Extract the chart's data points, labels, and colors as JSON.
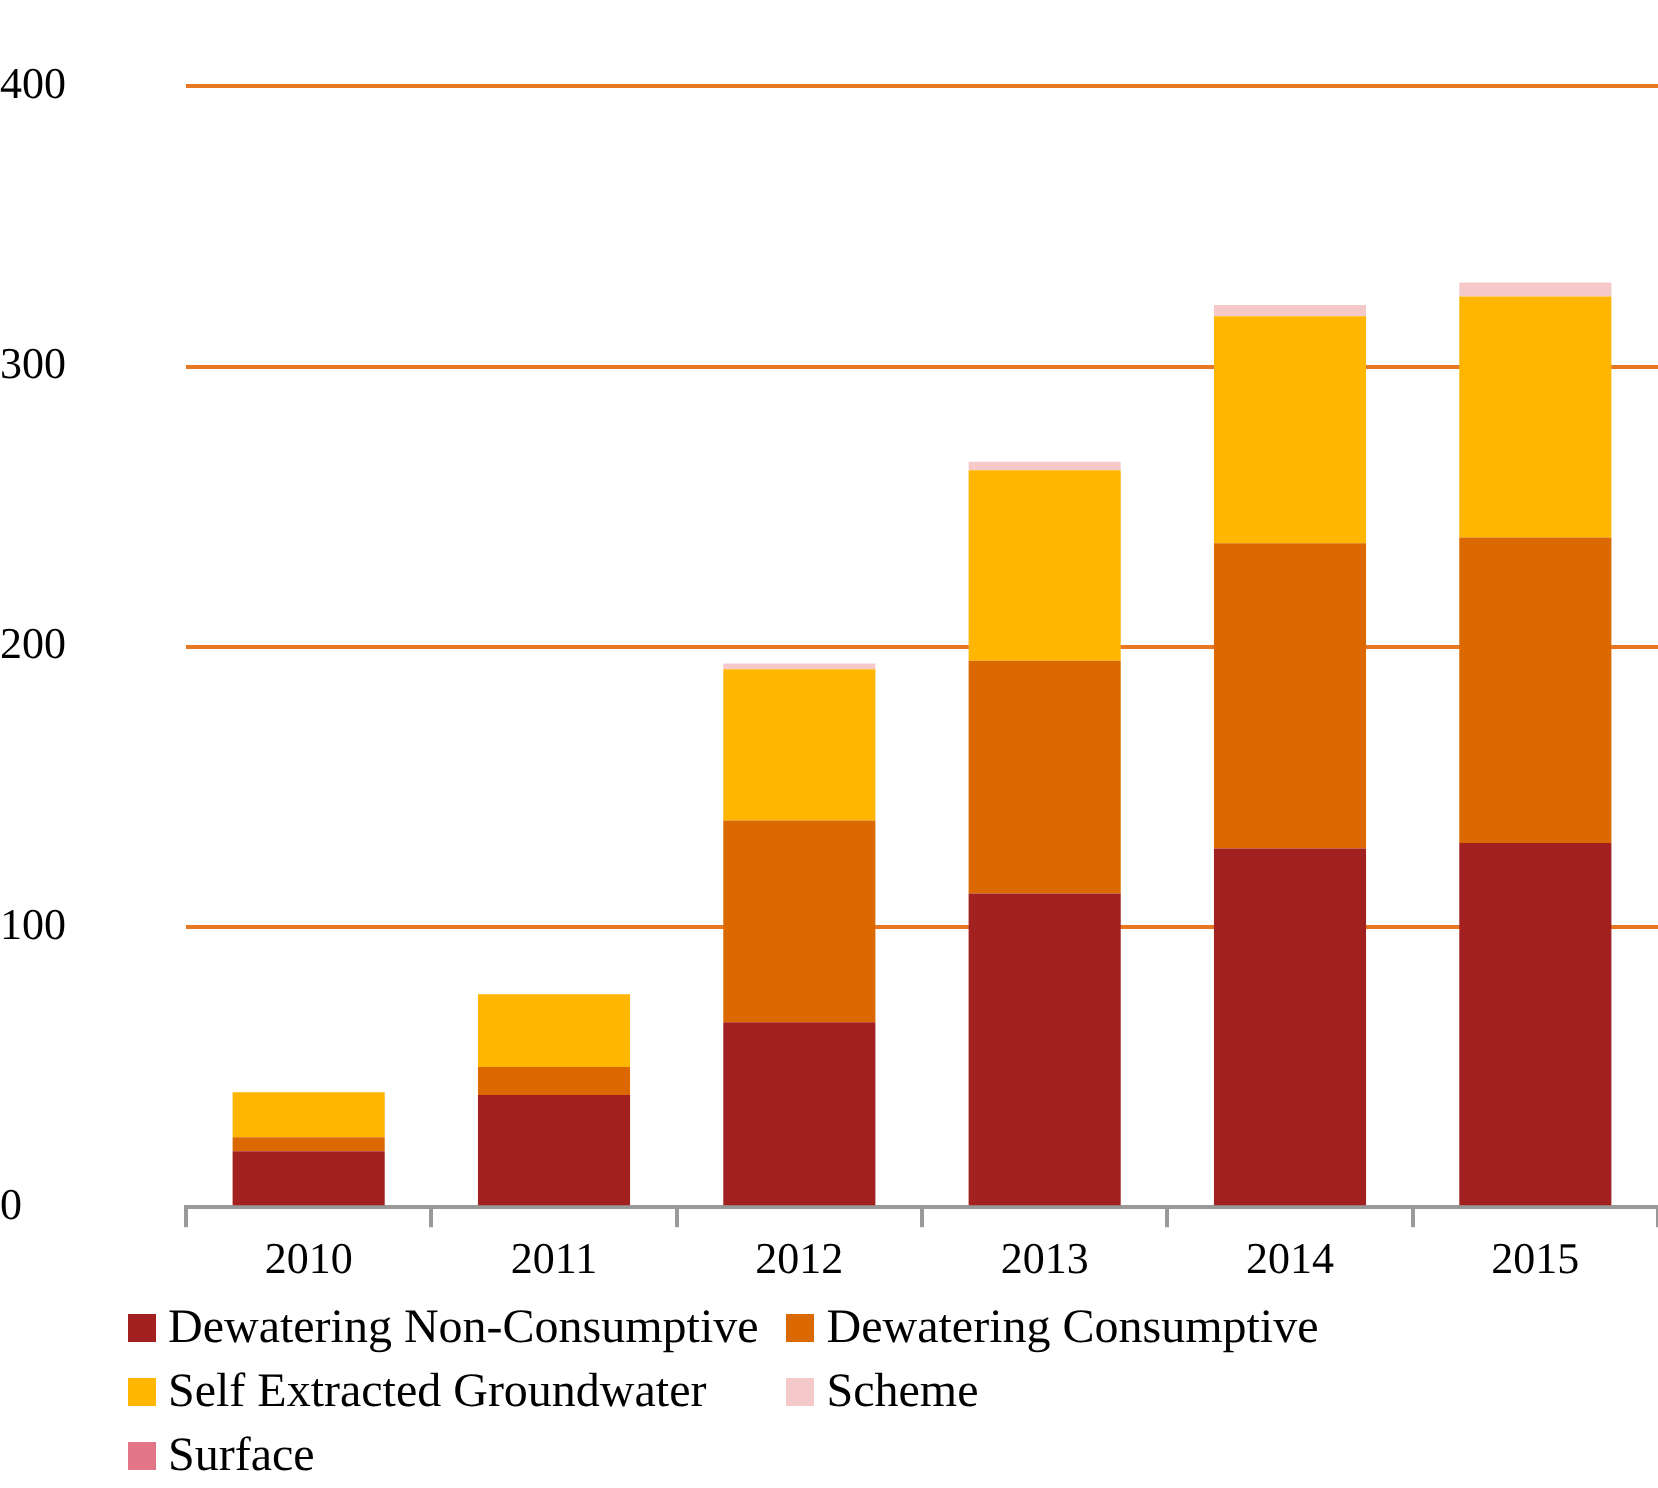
{
  "chart_data": {
    "type": "bar",
    "stacked": true,
    "categories": [
      "2010",
      "2011",
      "2012",
      "2013",
      "2014",
      "2015"
    ],
    "series": [
      {
        "name": "Dewatering Non-Consumptive",
        "color": "#a32020",
        "values": [
          20,
          40,
          66,
          112,
          128,
          130
        ]
      },
      {
        "name": "Dewatering Consumptive",
        "color": "#dc6900",
        "values": [
          5,
          10,
          72,
          83,
          109,
          109
        ]
      },
      {
        "name": "Self Extracted Groundwater",
        "color": "#ffb600",
        "values": [
          16,
          26,
          54,
          68,
          81,
          86
        ]
      },
      {
        "name": "Scheme",
        "color": "#f5c9c9",
        "values": [
          0,
          0,
          2,
          3,
          4,
          5
        ]
      },
      {
        "name": "Surface",
        "color": "#e27588",
        "values": [
          0,
          0,
          0,
          0,
          0,
          0
        ]
      }
    ],
    "ylim": [
      0,
      400
    ],
    "yticks": [
      0,
      100,
      200,
      300,
      400
    ],
    "grid": "y",
    "legend": "bottom"
  }
}
